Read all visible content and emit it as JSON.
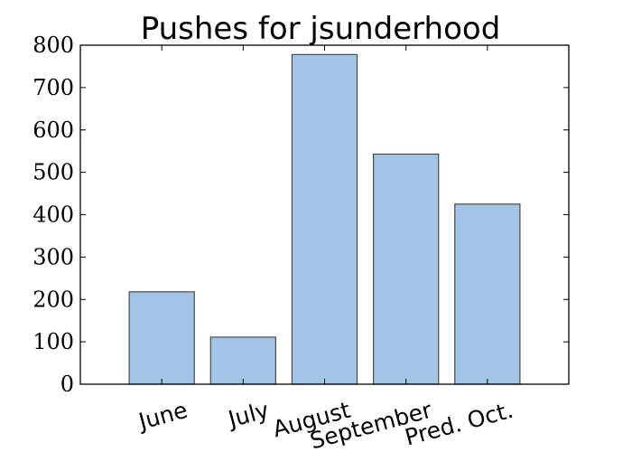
{
  "chart_data": {
    "type": "bar",
    "title": "Pushes for jsunderhood",
    "xlabel": "",
    "ylabel": "",
    "categories": [
      "June",
      "July",
      "August",
      "September",
      "Pred. Oct."
    ],
    "values": [
      218,
      111,
      778,
      543,
      425
    ],
    "ylim": [
      0,
      800
    ],
    "yticks": [
      "0",
      "100",
      "200",
      "300",
      "400",
      "500",
      "600",
      "700",
      "800"
    ],
    "bar_color": "#a2c4e6",
    "bar_edge_color": "#4a4a4a",
    "grid": false,
    "legend": "none"
  }
}
